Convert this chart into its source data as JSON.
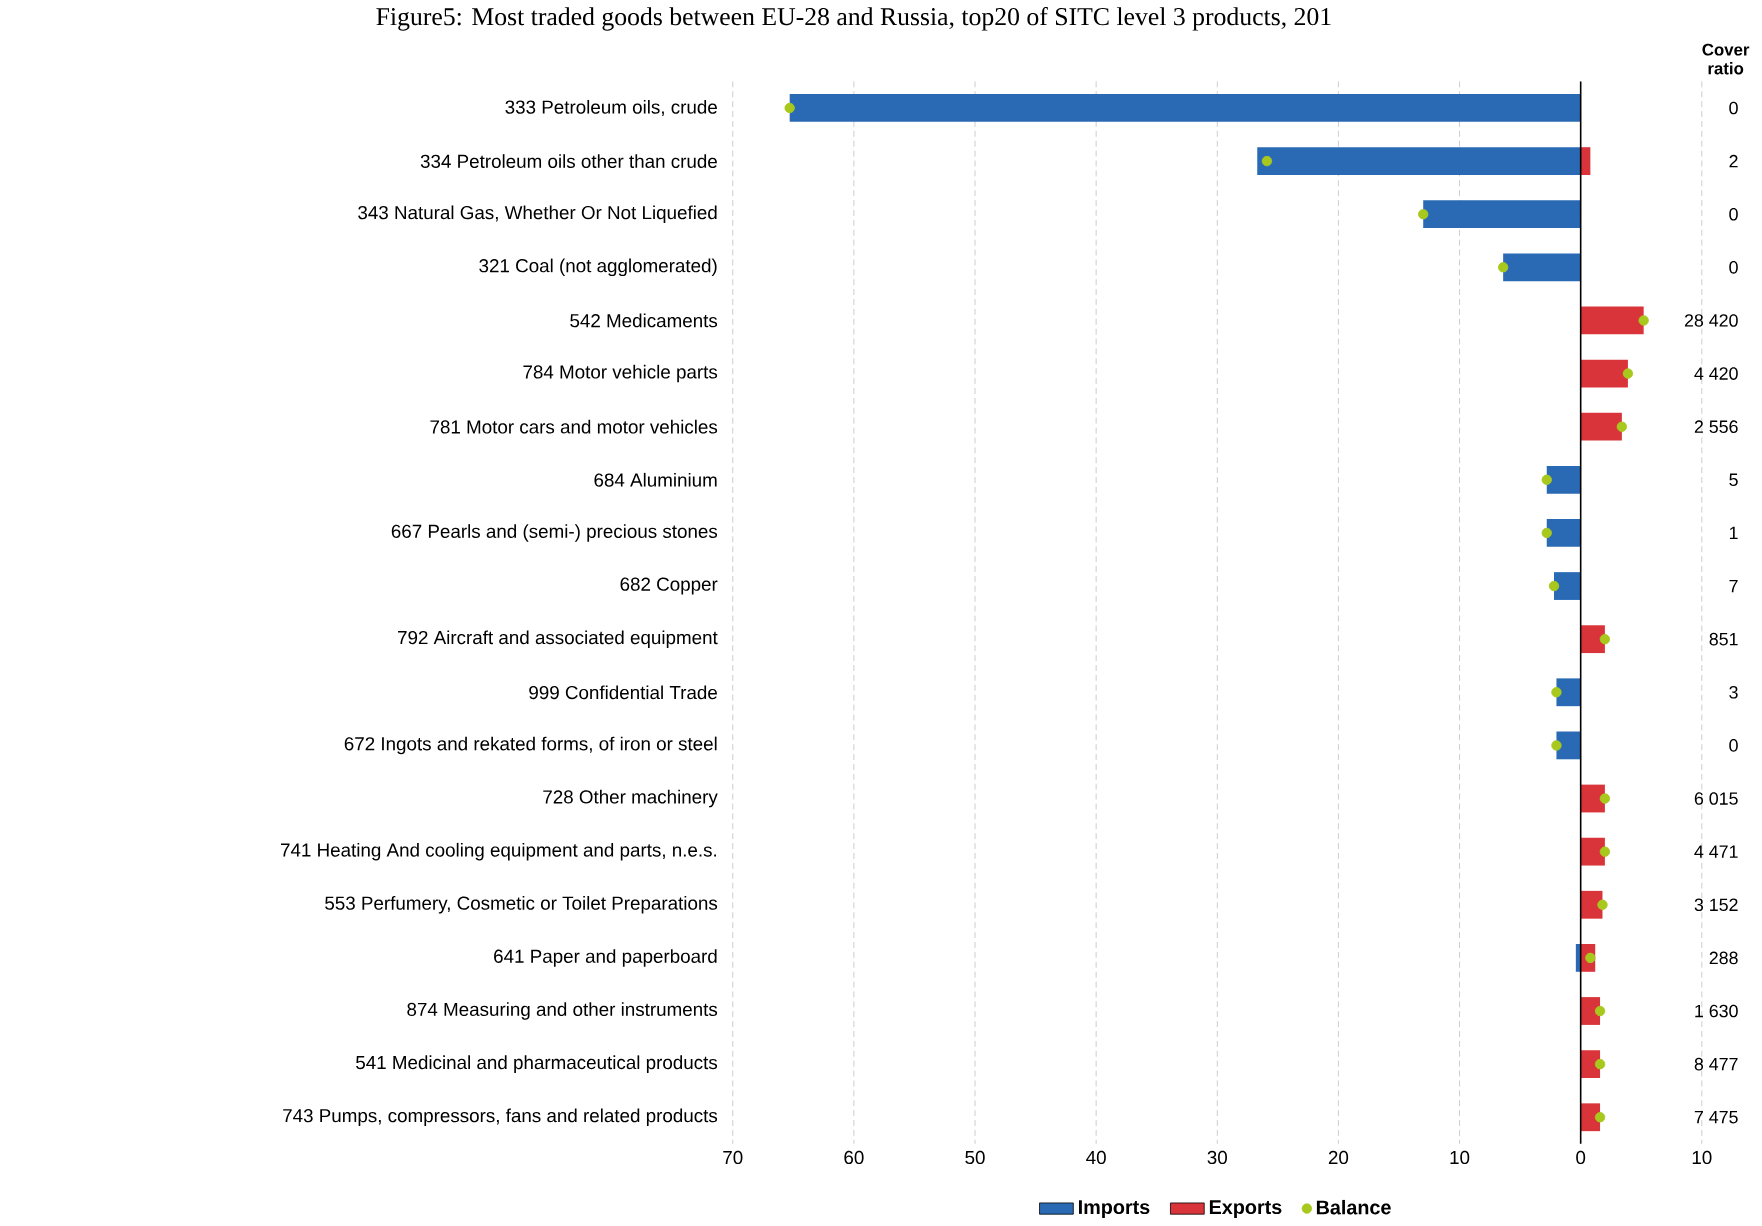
{
  "chart_data": {
    "type": "bar",
    "orientation": "horizontal",
    "title": "Figure5: Most traded goods between EU-28 and Russia, top20 of SITC level 3 products, 201",
    "categories": [
      "333 Petroleum oils, crude",
      "334 Petroleum oils other than crude",
      "343 Natural Gas, Whether Or Not Liquefied",
      "321 Coal (not agglomerated)",
      "542 Medicaments",
      "784 Motor vehicle parts",
      "781 Motor cars and motor vehicles",
      "684 Aluminium",
      "667 Pearls and (semi-) precious stones",
      "682 Copper",
      "792 Aircraft and associated equipment",
      "999 Confidential Trade",
      "672 Ingots and rekated forms, of iron or steel",
      "728 Other machinery",
      "741 Heating And cooling equipment and parts, n.e.s.",
      "553 Perfumery, Cosmetic or Toilet Preparations",
      "641 Paper and paperboard",
      "874 Measuring and other instruments",
      "541 Medicinal and pharmaceutical products",
      "743 Pumps, compressors, fans and related products"
    ],
    "series": [
      {
        "name": "Imports",
        "color": "#2a6ab5",
        "values": [
          -65.3,
          -26.7,
          -13.0,
          -6.4,
          0,
          0,
          0,
          -2.8,
          -2.8,
          -2.2,
          0,
          -2.0,
          -2.0,
          0,
          0,
          0,
          -0.4,
          0,
          0,
          0
        ]
      },
      {
        "name": "Exports",
        "color": "#d9343a",
        "values": [
          0,
          0.8,
          0,
          0,
          5.2,
          3.9,
          3.4,
          0,
          0,
          0,
          2.0,
          0,
          0,
          2.0,
          2.0,
          1.8,
          1.2,
          1.6,
          1.6,
          1.6
        ]
      },
      {
        "name": "Balance",
        "type": "scatter",
        "color": "#a8c81e",
        "values": [
          -65.3,
          -25.9,
          -13.0,
          -6.4,
          5.2,
          3.9,
          3.4,
          -2.8,
          -2.8,
          -2.2,
          2.0,
          -2.0,
          -2.0,
          2.0,
          2.0,
          1.8,
          0.8,
          1.6,
          1.6,
          1.6
        ]
      }
    ],
    "xlim": [
      -70,
      10
    ],
    "xticks": [
      {
        "value": -70,
        "label": "70"
      },
      {
        "value": -60,
        "label": "60"
      },
      {
        "value": -50,
        "label": "50"
      },
      {
        "value": -40,
        "label": "40"
      },
      {
        "value": -30,
        "label": "30"
      },
      {
        "value": -20,
        "label": "20"
      },
      {
        "value": -10,
        "label": "10"
      },
      0,
      10
    ],
    "grid": "x",
    "legend": "bottom",
    "annotations": [
      "Cover ratio",
      "0",
      "2",
      "0",
      "0",
      "28 420",
      "4 420",
      "2 556",
      "5",
      "1",
      "7",
      "851",
      "3",
      "0",
      "6 015",
      "4 471",
      "3 152",
      "288",
      "1 630",
      "8 477",
      "7 475"
    ]
  }
}
